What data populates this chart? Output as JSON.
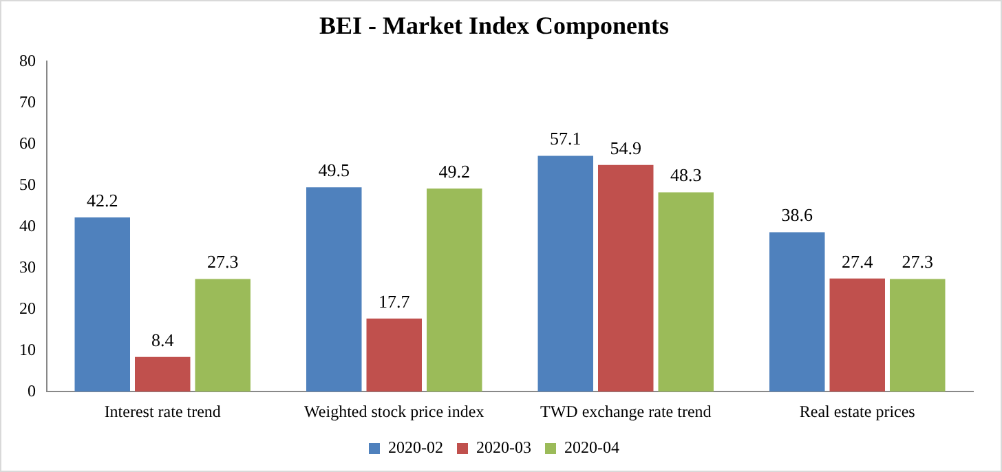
{
  "chart_data": {
    "type": "bar",
    "title": "BEI - Market Index Components",
    "categories": [
      "Interest rate trend",
      "Weighted stock price index",
      "TWD exchange rate trend",
      "Real estate prices"
    ],
    "series": [
      {
        "name": "2020-02",
        "color": "#4f81bd",
        "values": [
          42.2,
          49.5,
          57.1,
          38.6
        ]
      },
      {
        "name": "2020-03",
        "color": "#c0504d",
        "values": [
          8.4,
          17.7,
          54.9,
          27.4
        ]
      },
      {
        "name": "2020-04",
        "color": "#9bbb59",
        "values": [
          27.3,
          49.2,
          48.3,
          27.3
        ]
      }
    ],
    "ylim": [
      0,
      80
    ],
    "yticks": [
      0,
      10,
      20,
      30,
      40,
      50,
      60,
      70,
      80
    ],
    "grid": false,
    "legend": "bottom",
    "data_labels": true
  }
}
